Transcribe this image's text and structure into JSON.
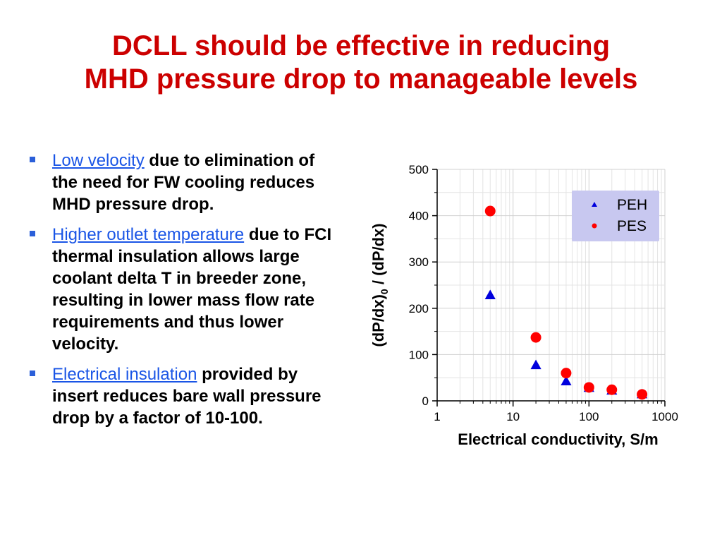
{
  "slide": {
    "title_lines": [
      "DCLL should be effective in reducing",
      "MHD pressure drop to manageable levels"
    ]
  },
  "bullets": [
    {
      "link": "Low velocity",
      "text": " due to elimination of the need for FW cooling reduces MHD pressure drop."
    },
    {
      "link": "Higher outlet temperature",
      "text": " due to FCI thermal insulation allows large coolant delta T in breeder zone, resulting in lower mass flow rate requirements and thus lower velocity."
    },
    {
      "link": "Electrical insulation",
      "text": " provided by insert reduces bare wall pressure drop by a factor of 10-100."
    }
  ],
  "colors": {
    "title": "#cc0000",
    "link": "#1a55e6",
    "bullet_marker": "#2b5fd9",
    "peh_marker": "#0000dd",
    "pes_marker": "#ff0000",
    "legend_bg": "#c8c8f0"
  },
  "chart_data": {
    "type": "scatter",
    "xlabel": "Electrical conductivity, S/m",
    "ylabel_main": "(dP/dx)",
    "ylabel_sub": "0",
    "ylabel_rest": " /  (dP/dx)",
    "x_scale": "log",
    "xlim": [
      1,
      1000
    ],
    "ylim": [
      0,
      500
    ],
    "x_ticks": [
      1,
      10,
      100,
      1000
    ],
    "x_tick_labels": [
      "1",
      "10",
      "100",
      "1000"
    ],
    "y_ticks": [
      0,
      100,
      200,
      300,
      400,
      500
    ],
    "y_tick_labels": [
      "0",
      "100",
      "200",
      "300",
      "400",
      "500"
    ],
    "grid": true,
    "legend_position": "top-right",
    "series": [
      {
        "name": "PEH",
        "marker": "triangle",
        "color": "#0000dd",
        "points": [
          [
            5,
            228
          ],
          [
            20,
            77
          ],
          [
            50,
            42
          ],
          [
            100,
            28
          ],
          [
            200,
            22
          ],
          [
            500,
            14
          ]
        ]
      },
      {
        "name": "PES",
        "marker": "circle",
        "color": "#ff0000",
        "points": [
          [
            5,
            410
          ],
          [
            20,
            137
          ],
          [
            50,
            60
          ],
          [
            100,
            29
          ],
          [
            200,
            24
          ],
          [
            500,
            14
          ]
        ]
      }
    ]
  }
}
